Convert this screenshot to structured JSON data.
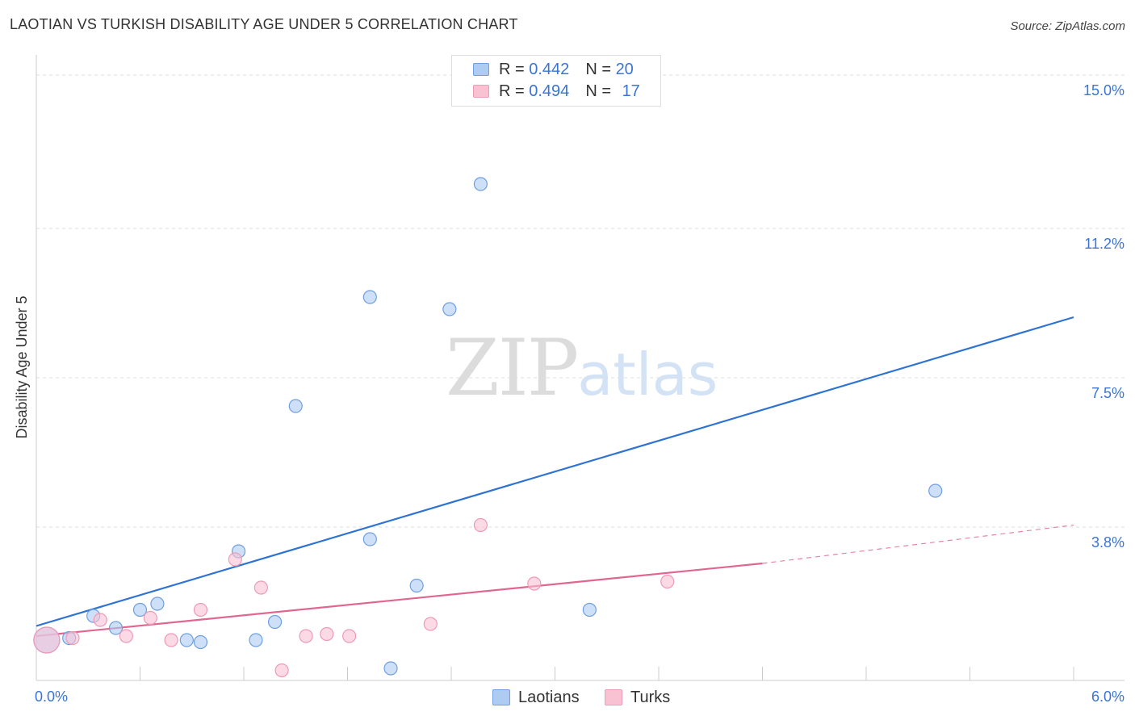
{
  "title": "LAOTIAN VS TURKISH DISABILITY AGE UNDER 5 CORRELATION CHART",
  "source": "Source: ZipAtlas.com",
  "watermark": {
    "zip": "ZIP",
    "atlas": "atlas"
  },
  "legend": {
    "rows": [
      {
        "r_label": "R = ",
        "r_value": "0.442",
        "n_label": "N = ",
        "n_value": "20"
      },
      {
        "r_label": "R = ",
        "r_value": "0.494",
        "n_label": "N = ",
        "n_value": "17"
      }
    ]
  },
  "colors": {
    "laotians_fill": "#aecbf2",
    "laotians_stroke": "#6f9fe0",
    "laotians_line": "#2f73d2",
    "turks_fill": "#f9c2d3",
    "turks_stroke": "#ee9ab5",
    "turks_line": "#e06692",
    "grid": "#dddddd",
    "tick_label": "#3a74d4"
  },
  "chart_data": {
    "type": "scatter",
    "title": "LAOTIAN VS TURKISH DISABILITY AGE UNDER 5 CORRELATION CHART",
    "xlabel": "",
    "ylabel": "Disability Age Under 5",
    "xlim": [
      0,
      6
    ],
    "ylim": [
      0,
      15.3
    ],
    "x_tick_labels": [
      "0.0%",
      "6.0%"
    ],
    "y_ticks": [
      3.8,
      7.5,
      11.2,
      15.0
    ],
    "y_tick_labels": [
      "3.8%",
      "7.5%",
      "11.2%",
      "15.0%"
    ],
    "legend_position": "bottom-center",
    "series": [
      {
        "name": "Laotians",
        "points": [
          {
            "x": 0.06,
            "y": 1.0,
            "big": true
          },
          {
            "x": 0.19,
            "y": 1.05
          },
          {
            "x": 0.33,
            "y": 1.6
          },
          {
            "x": 0.46,
            "y": 1.3
          },
          {
            "x": 0.6,
            "y": 1.75
          },
          {
            "x": 0.7,
            "y": 1.9
          },
          {
            "x": 0.87,
            "y": 1.0
          },
          {
            "x": 0.95,
            "y": 0.95
          },
          {
            "x": 1.17,
            "y": 3.2
          },
          {
            "x": 1.27,
            "y": 1.0
          },
          {
            "x": 1.38,
            "y": 1.45
          },
          {
            "x": 1.5,
            "y": 6.8
          },
          {
            "x": 1.93,
            "y": 3.5
          },
          {
            "x": 1.93,
            "y": 9.5
          },
          {
            "x": 2.05,
            "y": 0.3
          },
          {
            "x": 2.2,
            "y": 2.35
          },
          {
            "x": 2.39,
            "y": 9.2
          },
          {
            "x": 2.57,
            "y": 12.3
          },
          {
            "x": 3.2,
            "y": 1.75
          },
          {
            "x": 5.2,
            "y": 4.7
          }
        ],
        "trend": {
          "x0": 0.0,
          "y0": 1.35,
          "x1": 6.0,
          "y1": 9.0
        }
      },
      {
        "name": "Turks",
        "points": [
          {
            "x": 0.06,
            "y": 1.0,
            "big": true
          },
          {
            "x": 0.21,
            "y": 1.05
          },
          {
            "x": 0.37,
            "y": 1.5
          },
          {
            "x": 0.52,
            "y": 1.1
          },
          {
            "x": 0.66,
            "y": 1.55
          },
          {
            "x": 0.78,
            "y": 1.0
          },
          {
            "x": 0.95,
            "y": 1.75
          },
          {
            "x": 1.15,
            "y": 3.0
          },
          {
            "x": 1.3,
            "y": 2.3
          },
          {
            "x": 1.42,
            "y": 0.25
          },
          {
            "x": 1.56,
            "y": 1.1
          },
          {
            "x": 1.68,
            "y": 1.15
          },
          {
            "x": 1.81,
            "y": 1.1
          },
          {
            "x": 2.28,
            "y": 1.4
          },
          {
            "x": 2.57,
            "y": 3.85
          },
          {
            "x": 2.88,
            "y": 2.4
          },
          {
            "x": 3.65,
            "y": 2.45
          }
        ],
        "trend": {
          "x0": 0.0,
          "y0": 1.1,
          "x1": 4.2,
          "y1": 2.9
        },
        "trend_dashed": {
          "x0": 4.2,
          "y0": 2.9,
          "x1": 6.0,
          "y1": 3.85
        }
      }
    ]
  },
  "bottom_legend": {
    "laotians": "Laotians",
    "turks": "Turks"
  }
}
